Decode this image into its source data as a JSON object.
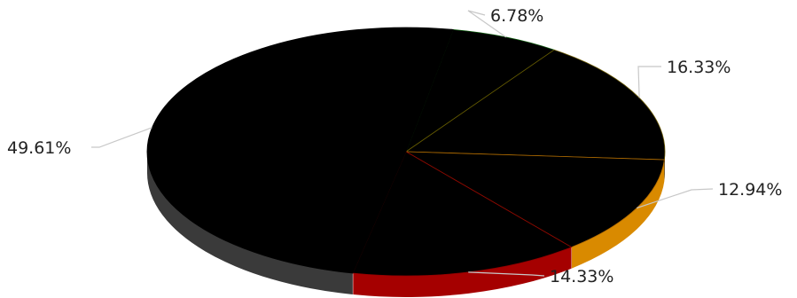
{
  "chart_data": {
    "type": "pie",
    "three_d": true,
    "series": [
      {
        "label": "6.78%",
        "value": 6.78,
        "top_color": "#000000",
        "side_color": "#1f1f1f",
        "edge_color": "#0d5a0d"
      },
      {
        "label": "16.33%",
        "value": 16.33,
        "top_color": "#000000",
        "side_color": "#1f1f1f",
        "edge_color": "#6b5a00"
      },
      {
        "label": "12.94%",
        "value": 12.94,
        "top_color": "#000000",
        "side_color": "#d98a00",
        "edge_color": "#b36b00"
      },
      {
        "label": "14.33%",
        "value": 14.33,
        "top_color": "#000000",
        "side_color": "#a50000",
        "edge_color": "#8f0000"
      },
      {
        "label": "49.61%",
        "value": 49.61,
        "top_color": "#000000",
        "side_color": "#3a3a3a",
        "edge_color": "#000000"
      }
    ],
    "leader_line_color": "#c8c8c8"
  }
}
